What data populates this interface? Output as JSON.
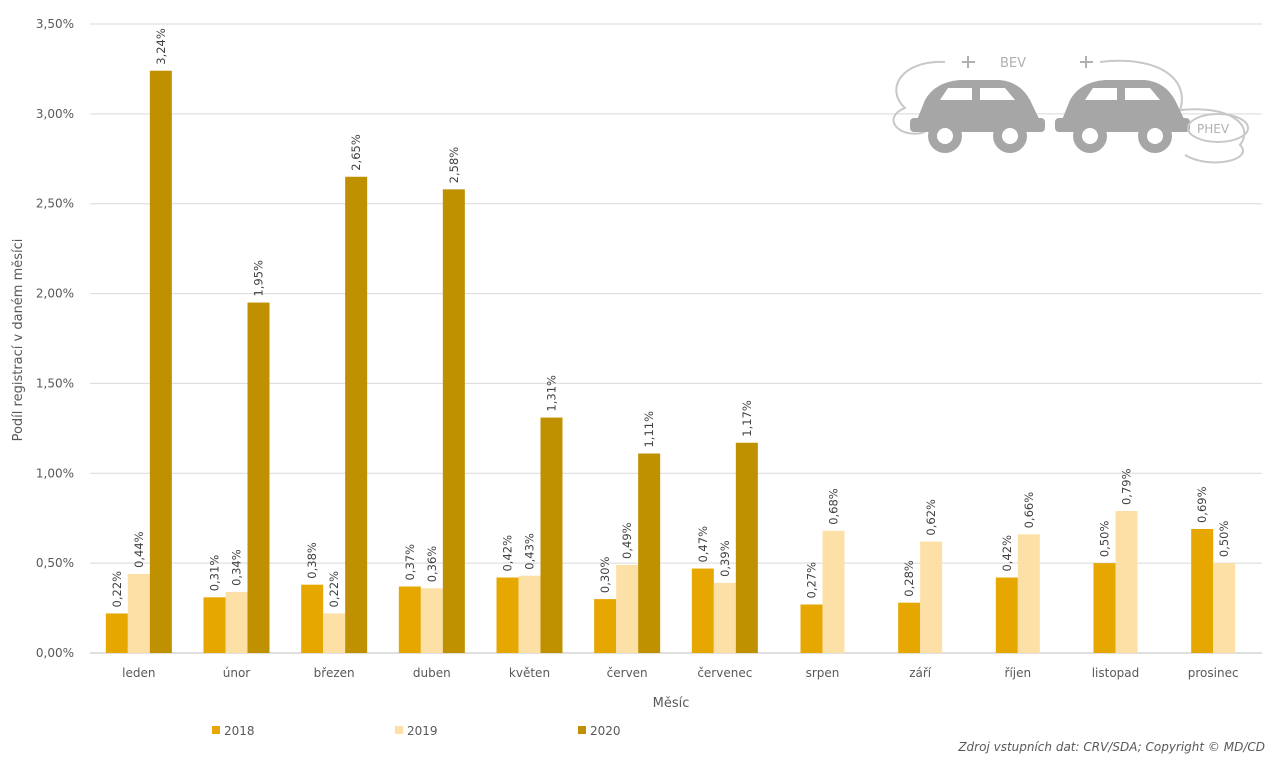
{
  "chart_data": {
    "type": "bar",
    "title": "",
    "xlabel": "Měsíc",
    "ylabel": "Podíl registrací v daném měsíci",
    "ylim": [
      0,
      3.5
    ],
    "yticks": [
      "0,00%",
      "0,50%",
      "1,00%",
      "1,50%",
      "2,00%",
      "2,50%",
      "3,00%",
      "3,50%"
    ],
    "categories": [
      "leden",
      "únor",
      "březen",
      "duben",
      "květen",
      "červen",
      "červenec",
      "srpen",
      "září",
      "říjen",
      "listopad",
      "prosinec"
    ],
    "series": [
      {
        "name": "2018",
        "color": "#e6a800",
        "values": [
          0.22,
          0.31,
          0.38,
          0.37,
          0.42,
          0.3,
          0.47,
          0.27,
          0.28,
          0.42,
          0.5,
          0.69
        ],
        "labels": [
          "0,22%",
          "0,31%",
          "0,38%",
          "0,37%",
          "0,42%",
          "0,30%",
          "0,47%",
          "0,27%",
          "0,28%",
          "0,42%",
          "0,50%",
          "0,69%"
        ]
      },
      {
        "name": "2019",
        "color": "#fde0a6",
        "values": [
          0.44,
          0.34,
          0.22,
          0.36,
          0.43,
          0.49,
          0.39,
          0.68,
          0.62,
          0.66,
          0.79,
          0.5
        ],
        "labels": [
          "0,44%",
          "0,34%",
          "0,22%",
          "0,36%",
          "0,43%",
          "0,49%",
          "0,39%",
          "0,68%",
          "0,62%",
          "0,66%",
          "0,79%",
          "0,50%"
        ]
      },
      {
        "name": "2020",
        "color": "#bf9000",
        "values": [
          3.24,
          1.95,
          2.65,
          2.58,
          1.31,
          1.11,
          1.17,
          null,
          null,
          null,
          null,
          null
        ],
        "labels": [
          "3,24%",
          "1,95%",
          "2,65%",
          "2,58%",
          "1,31%",
          "1,11%",
          "1,17%",
          null,
          null,
          null,
          null,
          null
        ]
      }
    ],
    "grid": true,
    "legend": "bottom-left"
  },
  "logo": {
    "bev_label": "BEV",
    "phev_label": "PHEV"
  },
  "source_note": "Zdroj vstupních dat: CRV/SDA; Copyright © MD/CD"
}
